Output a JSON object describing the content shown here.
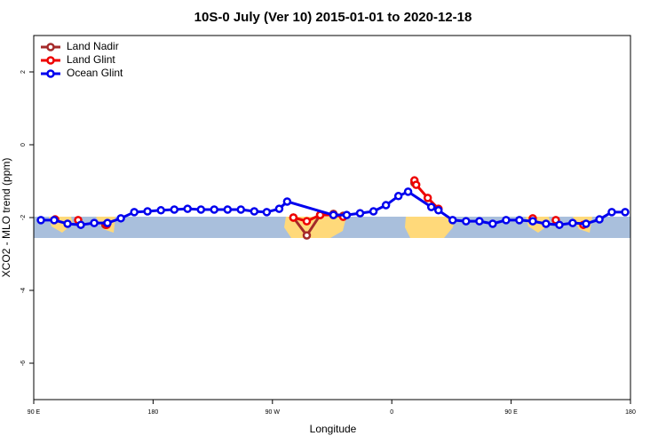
{
  "chart_data": {
    "type": "line",
    "title": "10S-0 July (Ver 10)   2015-01-01 to 2020-12-18",
    "x_label": "Longitude",
    "y_label": "XCO2 - MLO trend (ppm)",
    "xlim": [
      90,
      540
    ],
    "xticks": [
      {
        "value": 90,
        "label": "90 E"
      },
      180,
      {
        "value": 270,
        "label": "90 W"
      },
      {
        "value": 360,
        "label": "0"
      },
      {
        "value": 450,
        "label": "90 E"
      },
      {
        "value": 540,
        "label": "180"
      }
    ],
    "ylim": [
      -7,
      3
    ],
    "yticks": [
      -6,
      -4,
      -2,
      0,
      2
    ],
    "legend": "top-left",
    "series": [
      {
        "name": "Land Nadir",
        "color": "#a52a2a",
        "x": [
          144.0,
          null,
          285.8,
          295.9,
          306.0,
          316.0,
          323.4,
          null,
          377.1
        ],
        "values": [
          -2.2,
          null,
          -2.0,
          -2.49,
          -1.93,
          -1.9,
          -1.95,
          null,
          -1.05
        ]
      },
      {
        "name": "Land Glint",
        "color": "#ee0000",
        "x": [
          106.1,
          null,
          123.5,
          null,
          145.0,
          null,
          285.8,
          295.9,
          306.0,
          316.0,
          323.4,
          null,
          377.1,
          378.4,
          387.1,
          395.2,
          null,
          466.3,
          null,
          483.7,
          null,
          504.5
        ],
        "values": [
          -2.05,
          null,
          -2.07,
          null,
          -2.2,
          null,
          -2.0,
          -2.1,
          -1.93,
          -1.93,
          -1.98,
          null,
          -0.98,
          -1.1,
          -1.46,
          -1.76,
          null,
          -2.02,
          null,
          -2.07,
          null,
          -2.2
        ]
      },
      {
        "name": "Ocean Glint",
        "color": "#0000ee",
        "x": [
          95.4,
          105.4,
          115.5,
          125.5,
          135.6,
          145.6,
          155.7,
          165.8,
          175.8,
          185.9,
          196.0,
          206.0,
          216.1,
          226.1,
          236.2,
          246.2,
          256.3,
          265.7,
          275.1,
          281.1,
          316.0,
          326.0,
          336.1,
          346.2,
          355.6,
          365.0,
          372.3,
          389.8,
          395.2,
          405.9,
          416.0,
          426.1,
          436.1,
          446.2,
          456.2,
          466.3,
          476.3,
          486.4,
          496.4,
          506.5,
          516.6,
          525.9,
          536.0
        ],
        "values": [
          -2.07,
          -2.07,
          -2.17,
          -2.2,
          -2.15,
          -2.15,
          -2.02,
          -1.85,
          -1.83,
          -1.8,
          -1.78,
          -1.76,
          -1.78,
          -1.78,
          -1.78,
          -1.78,
          -1.83,
          -1.85,
          -1.76,
          -1.56,
          -1.93,
          -1.93,
          -1.88,
          -1.83,
          -1.66,
          -1.41,
          -1.29,
          -1.71,
          -1.8,
          -2.07,
          -2.1,
          -2.1,
          -2.17,
          -2.07,
          -2.07,
          -2.1,
          -2.17,
          -2.2,
          -2.15,
          -2.17,
          -2.05,
          -1.85,
          -1.85
        ]
      }
    ]
  }
}
